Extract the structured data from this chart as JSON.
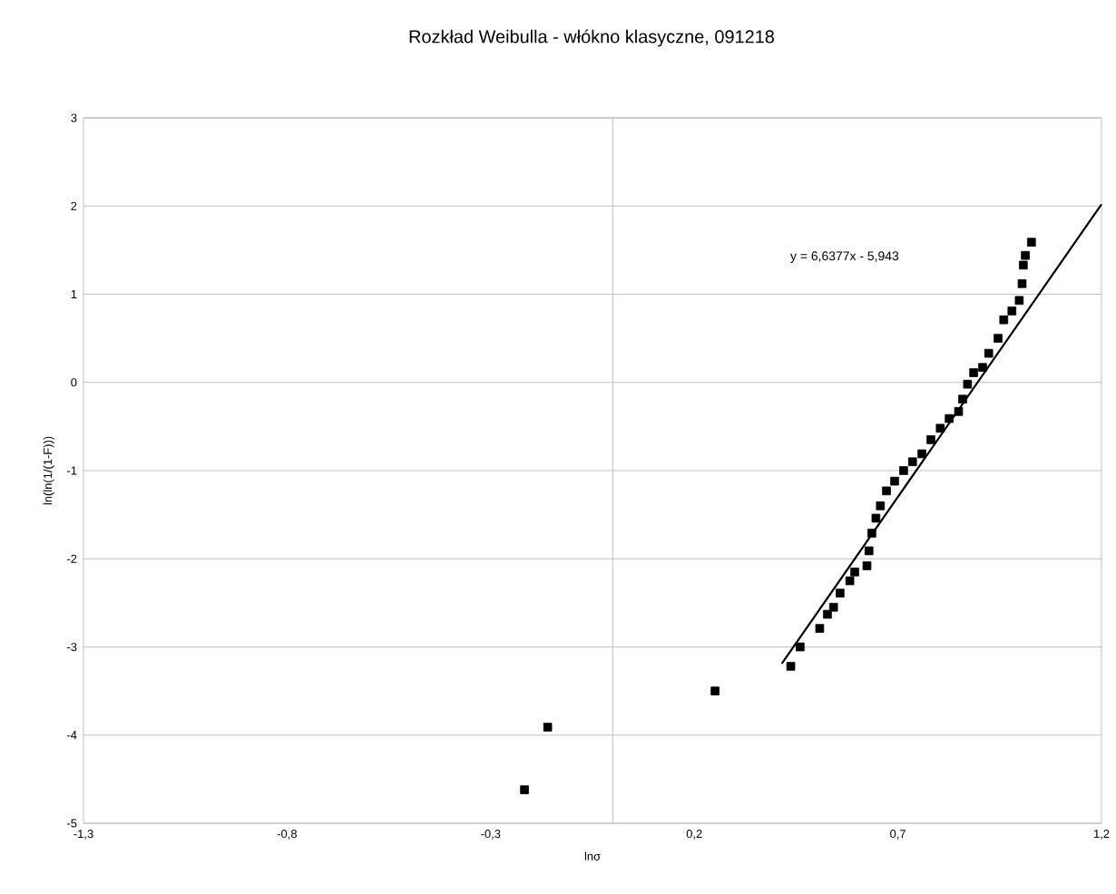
{
  "chart_data": {
    "type": "scatter",
    "title": "Rozkład Weibulla - włókno klasyczne, 091218",
    "xlabel": "lnσ",
    "ylabel": "ln(ln(1/(1-F)))",
    "annotations": [
      "y = 6,6377x - 5,943"
    ],
    "xlim": [
      -1.3,
      1.2
    ],
    "ylim": [
      -5,
      3
    ],
    "xticks": [
      {
        "value": -1.3,
        "label": "-1,3"
      },
      {
        "value": -0.8,
        "label": "-0,8"
      },
      {
        "value": -0.3,
        "label": "-0,3"
      },
      {
        "value": 0.2,
        "label": "0,2"
      },
      {
        "value": 0.7,
        "label": "0,7"
      },
      {
        "value": 1.2,
        "label": "1,2"
      }
    ],
    "yticks": [
      -5,
      -4,
      -3,
      -2,
      -1,
      0,
      1,
      2,
      3
    ],
    "grid": "y",
    "marker": "square",
    "ref_lines": [
      {
        "axis": "x",
        "value": 0,
        "color": "#b3b3b3"
      }
    ],
    "series": [
      {
        "color": "#000000",
        "x": [
          -0.217,
          -0.16,
          0.251,
          0.437,
          0.46,
          0.508,
          0.527,
          0.542,
          0.558,
          0.582,
          0.594,
          0.624,
          0.629,
          0.636,
          0.646,
          0.657,
          0.672,
          0.692,
          0.714,
          0.736,
          0.759,
          0.781,
          0.804,
          0.826,
          0.849,
          0.859,
          0.871,
          0.886,
          0.908,
          0.923,
          0.946,
          0.96,
          0.98,
          0.998,
          1.005,
          1.008,
          1.013,
          1.028
        ],
        "values": [
          -4.62,
          -3.91,
          -3.5,
          -3.22,
          -3.0,
          -2.79,
          -2.63,
          -2.55,
          -2.39,
          -2.25,
          -2.15,
          -2.08,
          -1.91,
          -1.71,
          -1.54,
          -1.4,
          -1.23,
          -1.12,
          -1.0,
          -0.9,
          -0.81,
          -0.65,
          -0.52,
          -0.41,
          -0.33,
          -0.19,
          -0.02,
          0.11,
          0.17,
          0.33,
          0.5,
          0.71,
          0.81,
          0.93,
          1.12,
          1.33,
          1.44,
          1.59
        ]
      },
      {
        "type": "line",
        "marker": "none",
        "color": "#000000",
        "x": [
          0.415,
          1.2
        ],
        "values": [
          -3.19,
          2.02
        ]
      }
    ]
  }
}
